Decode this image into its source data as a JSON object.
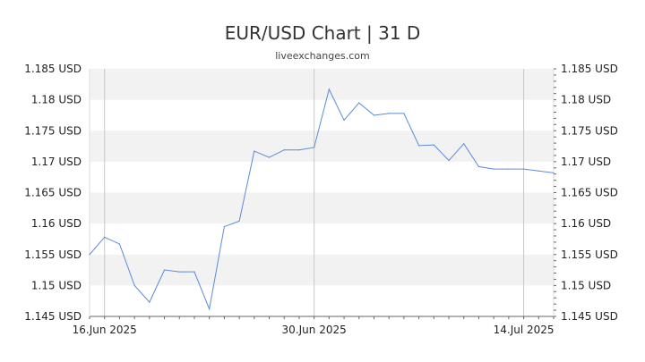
{
  "chart_data": {
    "type": "line",
    "title": "EUR/USD Chart | 31 D",
    "subtitle": "liveexchanges.com",
    "x_dates": [
      "2025-06-15",
      "2025-06-16",
      "2025-06-17",
      "2025-06-18",
      "2025-06-19",
      "2025-06-20",
      "2025-06-21",
      "2025-06-22",
      "2025-06-23",
      "2025-06-24",
      "2025-06-25",
      "2025-06-26",
      "2025-06-27",
      "2025-06-28",
      "2025-06-29",
      "2025-06-30",
      "2025-07-01",
      "2025-07-02",
      "2025-07-03",
      "2025-07-04",
      "2025-07-05",
      "2025-07-06",
      "2025-07-07",
      "2025-07-08",
      "2025-07-09",
      "2025-07-10",
      "2025-07-11",
      "2025-07-12",
      "2025-07-13",
      "2025-07-14",
      "2025-07-15",
      "2025-07-16"
    ],
    "series": [
      {
        "values": [
          1.155,
          1.1578,
          1.1567,
          1.15,
          1.1473,
          1.1525,
          1.1522,
          1.1522,
          1.1462,
          1.1595,
          1.1604,
          1.1717,
          1.1707,
          1.1719,
          1.1719,
          1.1723,
          1.1817,
          1.1767,
          1.1795,
          1.1775,
          1.1778,
          1.1778,
          1.1726,
          1.1727,
          1.1702,
          1.1729,
          1.1692,
          1.1688,
          1.1688,
          1.1688,
          1.1685,
          1.1682
        ]
      }
    ],
    "ylim": [
      1.145,
      1.185
    ],
    "y_ticks": [
      1.145,
      1.15,
      1.155,
      1.16,
      1.165,
      1.17,
      1.175,
      1.18,
      1.185
    ],
    "y_tick_labels": [
      "1.145 USD",
      "1.15 USD",
      "1.155 USD",
      "1.16 USD",
      "1.165 USD",
      "1.17 USD",
      "1.175 USD",
      "1.18 USD",
      "1.185 USD"
    ],
    "x_ticks": [
      {
        "date": "2025-06-16",
        "label": "16.Jun 2025"
      },
      {
        "date": "2025-06-30",
        "label": "30.Jun 2025"
      },
      {
        "date": "2025-07-14",
        "label": "14.Jul 2025"
      }
    ],
    "grid": true,
    "legend": "none",
    "colors": {
      "line": "#5b8bd8",
      "band": "#f2f2f2",
      "vline": "#c8c8c8",
      "axis": "#666666"
    }
  }
}
